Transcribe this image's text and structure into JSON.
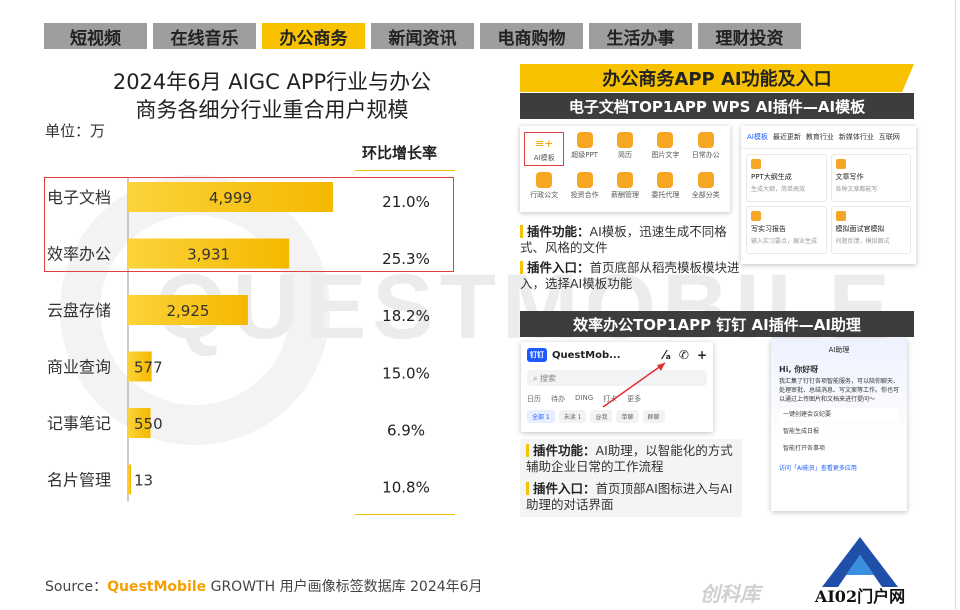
{
  "tabs": [
    "短视频",
    "在线音乐",
    "办公商务",
    "新闻资讯",
    "电商购物",
    "生活办事",
    "理财投资"
  ],
  "active_tab": 2,
  "watermark": "QUESTMOBILE",
  "chart_data": {
    "type": "bar",
    "orientation": "horizontal",
    "title_line1": "2024年6月 AIGC APP行业与办公",
    "title_line2": "商务各细分行业重合用户规模",
    "unit_label": "单位：万",
    "categories": [
      "电子文档",
      "效率办公",
      "云盘存储",
      "商业查询",
      "记事笔记",
      "名片管理"
    ],
    "values": [
      4999,
      3931,
      2925,
      577,
      550,
      13
    ],
    "value_labels": [
      "4,999",
      "3,931",
      "2,925",
      "577",
      "550",
      "13"
    ],
    "growth_header": "环比增长率",
    "growth": [
      "21.0%",
      "25.3%",
      "18.2%",
      "15.0%",
      "6.9%",
      "10.8%"
    ],
    "highlighted": [
      "电子文档",
      "效率办公"
    ],
    "bar_color": "#f9c200",
    "xlim": [
      0,
      5000
    ]
  },
  "source": {
    "prefix": "Source：",
    "brand": "QuestMobile",
    "rest": " GROWTH 用户画像标签数据库 2024年6月"
  },
  "right": {
    "title": "办公商务APP AI功能及入口",
    "sub1": "电子文档TOP1APP WPS AI插件—AI模板",
    "sub2": "效率办公TOP1APP 钉钉 AI插件—AI助理",
    "note1_func_label": "插件功能：",
    "note1_func_text": "AI模板，迅速生成不同格式、风格的文件",
    "note1_entry_label": "插件入口：",
    "note1_entry_text": "首页底部从稻壳模板模块进入，选择AI模板功能",
    "note2_func_label": "插件功能：",
    "note2_func_text": "AI助理，以智能化的方式辅助企业日常的工作流程",
    "note2_entry_label": "插件入口：",
    "note2_entry_text": "首页顶部AI图标进入与AI助理的对话界面",
    "wps_grid": [
      "AI模板",
      "超级PPT",
      "简历",
      "图片文字",
      "日常办公",
      "行政公文",
      "投资合作",
      "薪酬管理",
      "委托代理",
      "全部分类"
    ],
    "wps_nav": [
      "AI模板",
      "最近更新",
      "教育行业",
      "新媒体行业",
      "互联网"
    ],
    "wps_cards": [
      {
        "title": "PPT大纲生成",
        "sub": "生成大纲，简单高效"
      },
      {
        "title": "文章写作",
        "sub": "各种文案都能写"
      },
      {
        "title": "写实习报告",
        "sub": "输入实习要点，展业生成"
      },
      {
        "title": "模拟面试官模拟",
        "sub": "问题反馈，模拟面试"
      }
    ],
    "dd_title": "QuestMob...",
    "dd_logo": "钉钉",
    "dd_search": "搜索",
    "dd_tabs": [
      "日历",
      "待办",
      "DING",
      "打卡",
      "更多"
    ],
    "dd_pills": [
      "全部 1",
      "未读 1",
      "@我",
      "单聊",
      "群聊"
    ],
    "assistant_head": "AI助理",
    "assistant_hi": "Hi, 你好呀",
    "assistant_intro": "我汇集了钉钉各项智能服务，可以陪你聊天、处理审批、总结消息、写文案等工作。你也可以通过上传图片和文档来进行提问～",
    "assistant_items": [
      "一键创建会议纪要",
      "智能生成日报",
      "智能打开各事项"
    ],
    "assistant_foot": "访问「AI能员」查看更多应用"
  },
  "corner_logo_text": "AI02门户网",
  "corner_watermark": "创科库"
}
